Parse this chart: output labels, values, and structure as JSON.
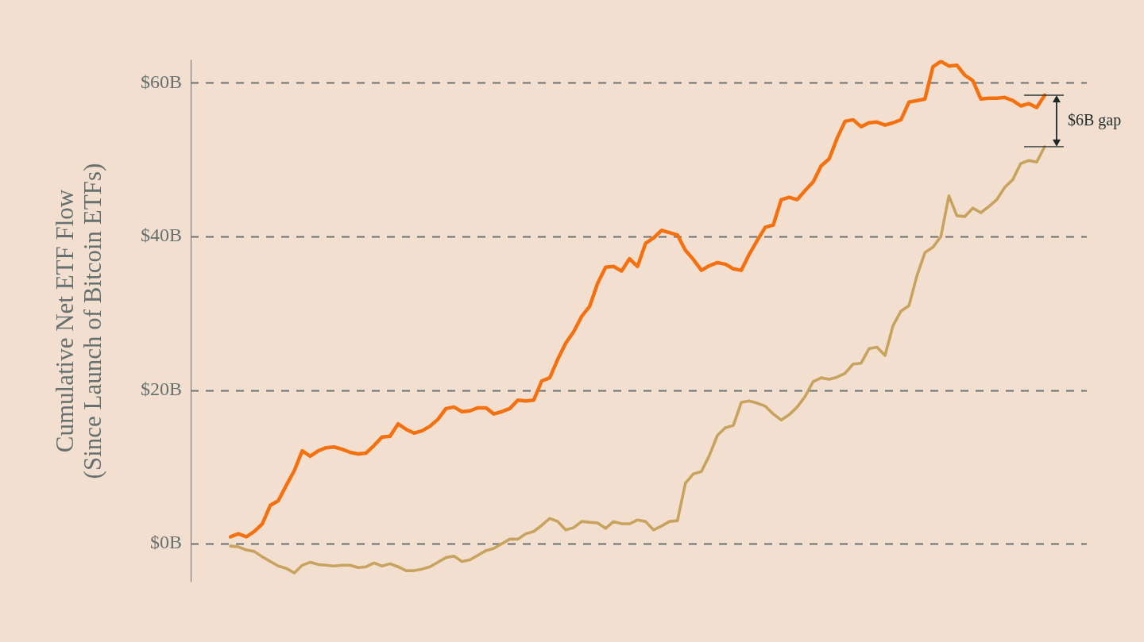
{
  "chart_data": {
    "type": "line",
    "ylabel": "Cumulative Net ETF Flow\n(Since Launch of Bitcoin ETFs)",
    "categories": [
      null,
      null,
      null,
      null,
      null,
      null,
      null,
      null,
      null,
      null,
      null,
      null,
      null,
      null,
      null,
      null,
      null,
      null,
      null,
      null,
      null,
      null,
      null,
      null,
      null,
      null,
      null,
      null,
      null,
      null,
      null,
      null,
      null,
      null,
      null,
      null,
      null,
      null,
      null,
      null,
      null,
      null,
      null,
      null,
      null,
      null,
      null,
      null,
      null,
      null,
      null,
      null,
      null,
      null,
      null,
      null,
      null,
      null,
      null,
      null,
      null,
      null,
      null,
      null,
      null,
      null,
      null,
      null,
      null,
      null,
      null,
      null,
      null,
      null,
      null,
      null,
      null,
      null,
      null,
      null,
      null,
      null,
      null,
      null,
      null,
      null,
      null,
      null,
      null,
      null,
      null,
      null,
      null,
      null,
      null,
      null,
      null,
      null,
      null,
      null,
      null,
      null,
      null
    ],
    "series": [
      {
        "color": "#f5700f",
        "values": [
          0.9,
          1.3,
          0.9,
          1.6,
          2.6,
          5.0,
          5.6,
          7.6,
          9.5,
          12.1,
          11.4,
          12.1,
          12.5,
          12.6,
          12.3,
          11.9,
          11.7,
          11.8,
          12.8,
          13.9,
          14.0,
          15.6,
          14.9,
          14.4,
          14.7,
          15.3,
          16.2,
          17.6,
          17.8,
          17.2,
          17.3,
          17.7,
          17.7,
          16.9,
          17.2,
          17.6,
          18.7,
          18.6,
          18.7,
          21.2,
          21.6,
          24.0,
          26.1,
          27.6,
          29.6,
          30.9,
          33.9,
          36.0,
          36.1,
          35.5,
          37.1,
          36.1,
          39.1,
          39.8,
          40.8,
          40.5,
          40.2,
          38.2,
          37.0,
          35.6,
          36.2,
          36.6,
          36.4,
          35.8,
          35.6,
          37.7,
          39.5,
          41.2,
          41.5,
          44.8,
          45.1,
          44.8,
          46.0,
          47.1,
          49.2,
          50.1,
          52.8,
          55.0,
          55.2,
          54.3,
          54.8,
          54.9,
          54.5,
          54.8,
          55.2,
          57.5,
          57.7,
          57.9,
          62.1,
          62.8,
          62.2,
          62.3,
          61.0,
          60.3,
          57.9,
          58.0,
          58.0,
          58.1,
          57.7,
          57.0,
          57.3,
          56.8,
          58.4
        ]
      },
      {
        "color": "#c8a35e",
        "values": [
          -0.3,
          -0.4,
          -0.8,
          -1.0,
          -1.7,
          -2.3,
          -2.9,
          -3.2,
          -3.8,
          -2.8,
          -2.4,
          -2.7,
          -2.8,
          -2.9,
          -2.8,
          -2.8,
          -3.1,
          -3.0,
          -2.5,
          -2.9,
          -2.6,
          -3.0,
          -3.5,
          -3.5,
          -3.3,
          -3.0,
          -2.4,
          -1.8,
          -1.6,
          -2.3,
          -2.1,
          -1.5,
          -0.9,
          -0.6,
          0.0,
          0.6,
          0.6,
          1.3,
          1.6,
          2.4,
          3.3,
          2.9,
          1.8,
          2.1,
          2.9,
          2.8,
          2.7,
          2.0,
          2.9,
          2.6,
          2.6,
          3.1,
          2.9,
          1.8,
          2.3,
          2.9,
          3.0,
          7.9,
          9.1,
          9.4,
          11.5,
          14.1,
          15.1,
          15.4,
          18.4,
          18.6,
          18.3,
          17.9,
          16.9,
          16.1,
          16.8,
          17.8,
          19.2,
          21.1,
          21.6,
          21.4,
          21.7,
          22.2,
          23.4,
          23.5,
          25.4,
          25.6,
          24.5,
          28.4,
          30.3,
          31.0,
          34.9,
          37.9,
          38.6,
          40.0,
          45.3,
          42.7,
          42.6,
          43.7,
          43.1,
          43.9,
          44.8,
          46.4,
          47.4,
          49.5,
          49.9,
          49.7,
          51.7
        ]
      }
    ],
    "ylim": [
      -5,
      63
    ],
    "yticks": [
      {
        "value": 0,
        "label": "$0B"
      },
      {
        "value": 20,
        "label": "$20B"
      },
      {
        "value": 40,
        "label": "$40B"
      },
      {
        "value": 60,
        "label": "$60B"
      }
    ],
    "grid": "y",
    "tick_labels": "y",
    "marker": "none",
    "annotations": [
      "$6B gap"
    ]
  }
}
